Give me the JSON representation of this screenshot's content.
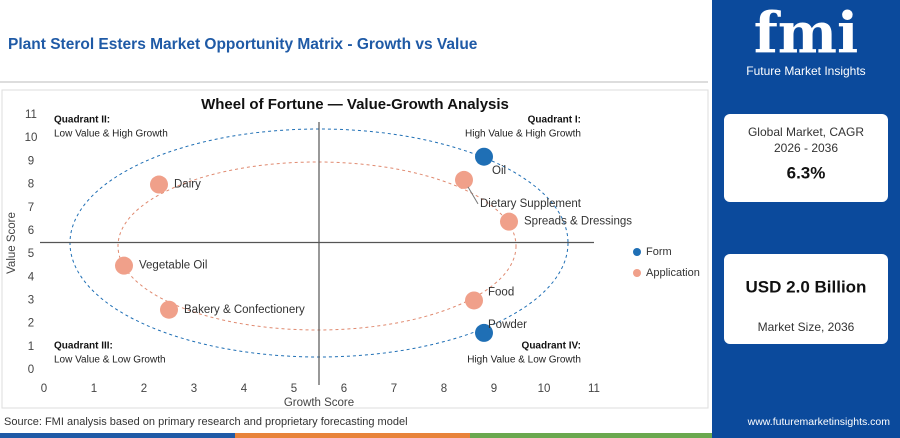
{
  "header": {
    "title": "Plant Sterol Esters Market Opportunity Matrix - Growth vs Value"
  },
  "chart_data": {
    "type": "scatter",
    "title": "Wheel of Fortune — Value-Growth Analysis",
    "x_label": "Growth Score",
    "y_label": "Value Score",
    "xlim": [
      0,
      11
    ],
    "ylim": [
      0,
      11
    ],
    "xticks": [
      0,
      1,
      2,
      3,
      4,
      5,
      6,
      7,
      8,
      9,
      10,
      11
    ],
    "yticks": [
      0,
      1,
      2,
      3,
      4,
      5,
      6,
      7,
      8,
      9,
      10,
      11
    ],
    "quadrant_lines": {
      "x": 5.5,
      "y": 5.5
    },
    "series": [
      {
        "name": "Form",
        "color": "#1f6fb5",
        "labels": [
          "Oil",
          "Powder"
        ],
        "x": [
          8.8,
          8.8
        ],
        "values": [
          9.2,
          1.6
        ]
      },
      {
        "name": "Application",
        "color": "#f0a08a",
        "labels": [
          "Dairy",
          "Vegetable Oil",
          "Bakery & Confectionery",
          "Dietary Supplement",
          "Spreads & Dressings",
          "Food"
        ],
        "x": [
          2.3,
          1.6,
          2.5,
          8.4,
          9.3,
          8.6
        ],
        "values": [
          8.0,
          4.5,
          2.6,
          8.2,
          6.4,
          3.0
        ]
      }
    ],
    "quadrants": [
      {
        "title": "Quadrant II:",
        "subtitle": "Low Value & High Growth"
      },
      {
        "title": "Quadrant I:",
        "subtitle": "High Value & High Growth"
      },
      {
        "title": "Quadrant III:",
        "subtitle": "Low Value & Low Growth"
      },
      {
        "title": "Quadrant IV:",
        "subtitle": "High Value & Low Growth"
      }
    ]
  },
  "sidebar": {
    "logo": "fmi",
    "brand": "Future Market Insights",
    "cagr_label": "Global Market, CAGR 2026 - 2036",
    "cagr_value": "6.3%",
    "size_value": "USD 2.0 Billion",
    "size_label": "Market Size, 2036"
  },
  "footer": {
    "source": "Source: FMI analysis based on primary research and proprietary forecasting model",
    "url": "www.futuremarketinsights.com"
  }
}
